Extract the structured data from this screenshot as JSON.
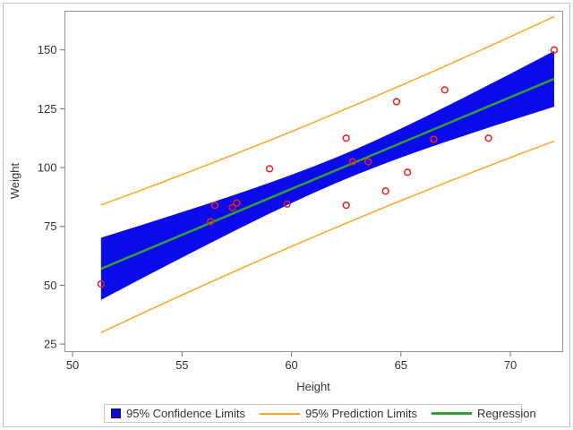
{
  "colors": {
    "confidence_band": "#0a0aeb",
    "prediction_line": "#ffa523",
    "regression_line": "#359f35",
    "marker": "#ef1c1c",
    "plot_border": "#949494",
    "tick": "#6e6e6e",
    "text": "#333333",
    "legend_border": "#c9c9c9",
    "outer_border": "#c0c0c0",
    "background": "#ffffff"
  },
  "legend": {
    "items": [
      {
        "label": "95% Confidence Limits",
        "swatch": "filled-square",
        "color": "#0a0aeb"
      },
      {
        "label": "95% Prediction Limits",
        "swatch": "thin-line",
        "color": "#ffa523"
      },
      {
        "label": "Regression",
        "swatch": "thick-line",
        "color": "#359f35"
      }
    ]
  },
  "chart_data": {
    "type": "scatter",
    "title": "",
    "xlabel": "Height",
    "ylabel": "Weight",
    "xlim": [
      49.65,
      72.39
    ],
    "ylim": [
      21.8,
      166.45
    ],
    "x_ticks": [
      50,
      55,
      60,
      65,
      70
    ],
    "y_ticks": [
      25,
      50,
      75,
      100,
      125,
      150
    ],
    "grid": false,
    "legend_position": "bottom",
    "series": [
      {
        "name": "95% confidence band",
        "type": "band",
        "x": [
          51.3,
          52,
          53,
          54,
          55,
          56,
          57,
          58,
          59,
          60,
          61,
          62,
          63,
          64,
          65,
          66,
          67,
          68,
          69,
          70,
          71,
          72
        ],
        "lower": [
          43.8,
          47.22,
          52.09,
          56.94,
          61.76,
          66.54,
          71.26,
          75.92,
          80.48,
          84.91,
          89.19,
          93.26,
          97.13,
          100.78,
          104.25,
          107.57,
          110.77,
          113.89,
          116.95,
          119.95,
          122.92,
          125.87
        ],
        "upper": [
          70.18,
          72.22,
          75.15,
          78.1,
          81.08,
          84.1,
          87.17,
          90.32,
          93.55,
          96.91,
          100.44,
          104.16,
          108.09,
          112.24,
          116.57,
          121.05,
          125.65,
          130.33,
          135.07,
          139.87,
          144.7,
          149.55
        ]
      },
      {
        "name": "95% prediction limits",
        "type": "limits",
        "x": [
          51.3,
          52,
          53,
          54,
          55,
          56,
          57,
          58,
          59,
          60,
          61,
          62,
          63,
          64,
          65,
          66,
          67,
          68,
          69,
          70,
          71,
          72
        ],
        "lower": [
          29.88,
          32.94,
          37.28,
          41.58,
          45.84,
          50.06,
          54.24,
          58.37,
          62.44,
          66.48,
          70.47,
          74.41,
          78.3,
          82.14,
          85.94,
          89.69,
          93.39,
          97.04,
          100.65,
          104.22,
          107.74,
          111.23
        ],
        "upper": [
          84.1,
          86.5,
          89.96,
          93.46,
          97,
          100.58,
          104.2,
          107.87,
          111.58,
          115.34,
          119.15,
          123.01,
          126.92,
          130.88,
          134.88,
          138.93,
          143.03,
          147.18,
          151.37,
          155.6,
          159.88,
          164.19
        ]
      },
      {
        "name": "regression",
        "type": "line",
        "x": [
          51.3,
          72
        ],
        "y": [
          56.99,
          137.71
        ]
      },
      {
        "name": "observations",
        "type": "scatter",
        "marker": "open-circle",
        "points": [
          [
            69,
            112.5
          ],
          [
            56.5,
            84
          ],
          [
            65.3,
            98
          ],
          [
            62.8,
            102.5
          ],
          [
            63.5,
            102.5
          ],
          [
            57.3,
            83
          ],
          [
            59.8,
            84.5
          ],
          [
            62.5,
            112.5
          ],
          [
            62.5,
            84
          ],
          [
            59,
            99.5
          ],
          [
            51.3,
            50.5
          ],
          [
            64.3,
            90
          ],
          [
            56.3,
            77
          ],
          [
            66.5,
            112
          ],
          [
            72,
            150
          ],
          [
            64.8,
            128
          ],
          [
            67,
            133
          ],
          [
            57.5,
            85
          ],
          [
            66.5,
            112
          ]
        ]
      }
    ]
  }
}
